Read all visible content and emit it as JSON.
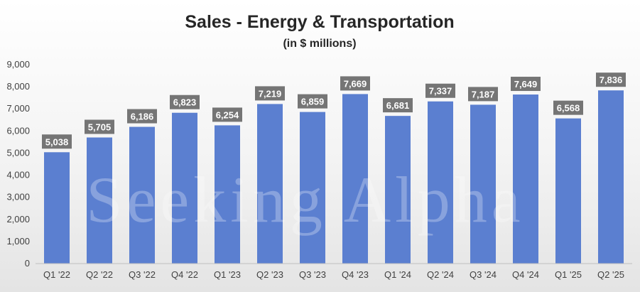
{
  "chart_data": {
    "type": "bar",
    "title": "Sales - Energy & Transportation",
    "subtitle": "(in $ millions)",
    "xlabel": "",
    "ylabel": "",
    "categories": [
      "Q1 '22",
      "Q2 '22",
      "Q3 '22",
      "Q4 '22",
      "Q1 '23",
      "Q2 '23",
      "Q3 '23",
      "Q4 '23",
      "Q1 '24",
      "Q2 '24",
      "Q3 '24",
      "Q4 '24",
      "Q1 '25",
      "Q2 '25"
    ],
    "values": [
      5038,
      5705,
      6186,
      6823,
      6254,
      7219,
      6859,
      7669,
      6681,
      7337,
      7187,
      7649,
      6568,
      7836
    ],
    "value_labels": [
      "5,038",
      "5,705",
      "6,186",
      "6,823",
      "6,254",
      "7,219",
      "6,859",
      "7,669",
      "6,681",
      "7,337",
      "7,187",
      "7,649",
      "6,568",
      "7,836"
    ],
    "ylim": [
      0,
      9000
    ],
    "yticks": [
      0,
      1000,
      2000,
      3000,
      4000,
      5000,
      6000,
      7000,
      8000,
      9000
    ],
    "ytick_labels": [
      "0",
      "1,000",
      "2,000",
      "3,000",
      "4,000",
      "5,000",
      "6,000",
      "7,000",
      "8,000",
      "9,000"
    ],
    "grid": false,
    "legend": "none",
    "colors": {
      "bar": "#5b7fd0",
      "label_bg": "#757575",
      "axis": "#bfbfbf"
    }
  },
  "watermark": "Seeking Alpha"
}
